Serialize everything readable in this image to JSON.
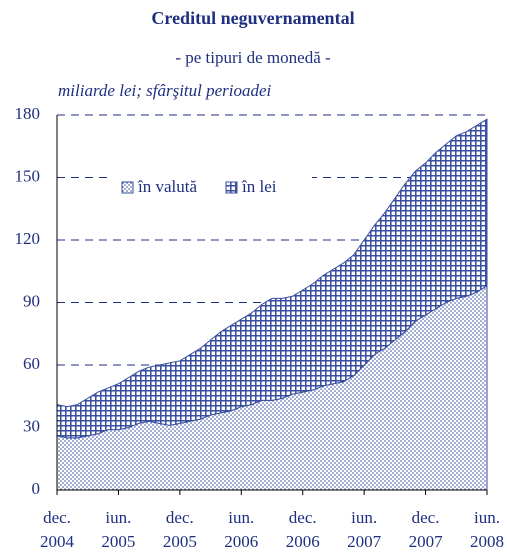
{
  "chart_data": {
    "type": "stacked_area",
    "title": "Creditul neguvernamental",
    "subtitle": "- pe tipuri de monedă -",
    "y_label": "miliarde lei; sfârşitul perioadei",
    "categories": [
      "dec. 2004",
      null,
      null,
      null,
      null,
      null,
      "iun. 2005",
      null,
      null,
      null,
      null,
      null,
      "dec. 2005",
      null,
      null,
      null,
      null,
      null,
      "iun. 2006",
      null,
      null,
      null,
      null,
      null,
      "dec. 2006",
      null,
      null,
      null,
      null,
      null,
      "iun. 2007",
      null,
      null,
      null,
      null,
      null,
      "dec. 2007",
      null,
      null,
      null,
      null,
      null,
      "iun. 2008"
    ],
    "series": [
      {
        "name": "în valută",
        "color": "#3a4fa0",
        "pattern": "dots",
        "values": [
          26,
          25,
          25,
          26,
          27,
          29,
          29,
          30,
          32,
          33,
          32,
          31,
          32,
          33,
          34,
          36,
          37,
          38,
          40,
          41,
          43,
          43,
          44,
          46,
          47,
          48,
          50,
          51,
          52,
          55,
          60,
          65,
          68,
          72,
          76,
          81,
          84,
          87,
          90,
          92,
          93,
          95,
          98
        ]
      },
      {
        "name": "în lei",
        "color": "#3a4fa0",
        "pattern": "crosshatch",
        "values": [
          15,
          15,
          16,
          18,
          20,
          20,
          22,
          24,
          25,
          26,
          28,
          30,
          30,
          32,
          34,
          36,
          39,
          41,
          42,
          44,
          46,
          49,
          48,
          47,
          49,
          51,
          53,
          55,
          57,
          58,
          60,
          62,
          65,
          68,
          71,
          72,
          73,
          75,
          76,
          78,
          79,
          80,
          80
        ]
      }
    ],
    "ylim": [
      0,
      180
    ],
    "yticks": [
      0,
      30,
      60,
      90,
      120,
      150,
      180
    ],
    "grid": true
  }
}
